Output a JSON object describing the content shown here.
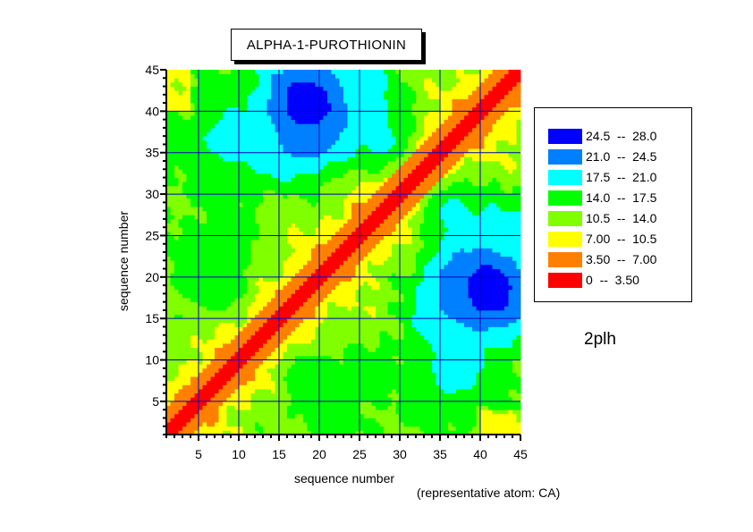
{
  "chart_data": {
    "type": "heatmap",
    "title": "ALPHA-1-PUROTHIONIN",
    "xlabel": "sequence number",
    "ylabel": "sequence number",
    "xlim": [
      1,
      45
    ],
    "ylim": [
      1,
      45
    ],
    "x_ticks": [
      5,
      10,
      15,
      20,
      25,
      30,
      35,
      40,
      45
    ],
    "y_ticks": [
      5,
      10,
      15,
      20,
      25,
      30,
      35,
      40,
      45
    ],
    "grid": true,
    "legend_position": "right",
    "levels": [
      {
        "range": "24.5  --  28.0",
        "min": 24.5,
        "max": 28.0,
        "color": "#0000ff"
      },
      {
        "range": "21.0  --  24.5",
        "min": 21.0,
        "max": 24.5,
        "color": "#0080ff"
      },
      {
        "range": "17.5  --  21.0",
        "min": 17.5,
        "max": 21.0,
        "color": "#00ffff"
      },
      {
        "range": "14.0  --  17.5",
        "min": 14.0,
        "max": 17.5,
        "color": "#00ff00"
      },
      {
        "range": "10.5  --  14.0",
        "min": 10.5,
        "max": 14.0,
        "color": "#80ff00"
      },
      {
        "range": "7.00  --  10.5",
        "min": 7.0,
        "max": 10.5,
        "color": "#ffff00"
      },
      {
        "range": "3.50  --  7.00",
        "min": 3.5,
        "max": 7.0,
        "color": "#ff8000"
      },
      {
        "range": "0  --  3.50",
        "min": 0,
        "max": 3.5,
        "color": "#ff0000"
      }
    ],
    "hotspots": [
      {
        "x": 18.5,
        "y": 41.0,
        "value": 26.5,
        "spread": 4.5
      },
      {
        "x": 19.0,
        "y": 37.5,
        "value": 23.0,
        "spread": 3.0
      },
      {
        "x": 14.0,
        "y": 36.5,
        "value": 19.5,
        "spread": 3.2
      },
      {
        "x": 8.0,
        "y": 36.5,
        "value": 18.5,
        "spread": 3.0
      },
      {
        "x": 24.5,
        "y": 41.0,
        "value": 19.5,
        "spread": 3.5
      },
      {
        "x": 28.0,
        "y": 36.5,
        "value": 18.5,
        "spread": 2.5
      },
      {
        "x": 41.0,
        "y": 18.5,
        "value": 26.5,
        "spread": 4.5
      },
      {
        "x": 37.5,
        "y": 19.0,
        "value": 23.0,
        "spread": 3.0
      },
      {
        "x": 36.5,
        "y": 14.0,
        "value": 19.5,
        "spread": 3.2
      },
      {
        "x": 36.5,
        "y": 8.0,
        "value": 18.5,
        "spread": 3.0
      },
      {
        "x": 41.0,
        "y": 24.5,
        "value": 19.5,
        "spread": 3.5
      },
      {
        "x": 36.5,
        "y": 28.0,
        "value": 18.5,
        "spread": 2.5
      },
      {
        "x": 7.0,
        "y": 20.0,
        "value": 17.5,
        "spread": 3.0
      },
      {
        "x": 20.0,
        "y": 7.0,
        "value": 17.5,
        "spread": 3.0
      },
      {
        "x": 8.0,
        "y": 26.0,
        "value": 14.5,
        "spread": 3.0
      },
      {
        "x": 26.0,
        "y": 8.0,
        "value": 14.5,
        "spread": 3.0
      }
    ]
  },
  "annotations": {
    "pdb_id": "2plh",
    "representative_atom": "(representative atom: CA)"
  }
}
